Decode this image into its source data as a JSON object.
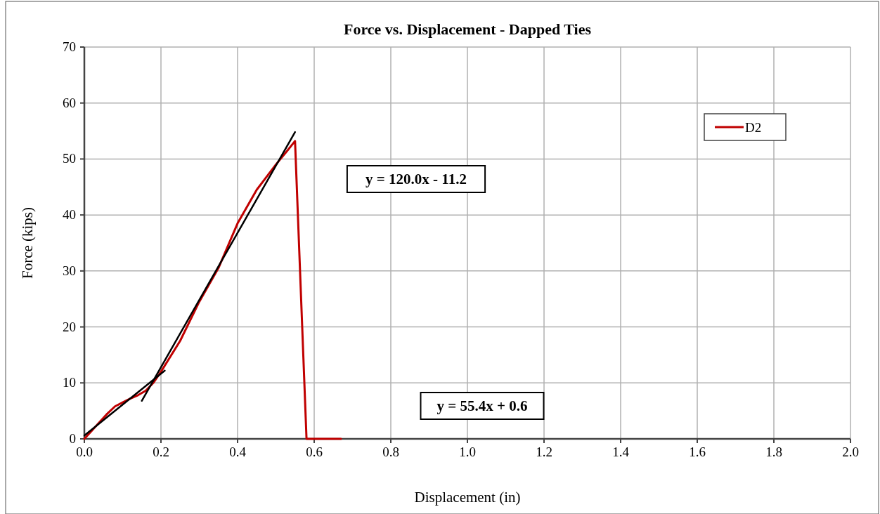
{
  "chart_data": {
    "type": "line",
    "title": "Force vs. Displacement - Dapped Ties",
    "xlabel": "Displacement (in)",
    "ylabel": "Force (kips)",
    "xlim": [
      0,
      2
    ],
    "xticks": [
      {
        "value": 0,
        "label": "0.0"
      },
      {
        "value": 0.2,
        "label": "0.2"
      },
      {
        "value": 0.4,
        "label": "0.4"
      },
      {
        "value": 0.6,
        "label": "0.6"
      },
      {
        "value": 0.8,
        "label": "0.8"
      },
      {
        "value": 1,
        "label": "1.0"
      },
      {
        "value": 1.2,
        "label": "1.2"
      },
      {
        "value": 1.4,
        "label": "1.4"
      },
      {
        "value": 1.6,
        "label": "1.6"
      },
      {
        "value": 1.8,
        "label": "1.8"
      },
      {
        "value": 2,
        "label": "2.0"
      }
    ],
    "ylim": [
      0,
      70
    ],
    "yticks": [
      0,
      10,
      20,
      30,
      40,
      50,
      60,
      70
    ],
    "grid": true,
    "legend": "top right",
    "marker": "none",
    "line_style": "solid",
    "series": [
      {
        "name": "D2",
        "color": "#c00000",
        "x": [
          0,
          0.02,
          0.04,
          0.06,
          0.08,
          0.1,
          0.12,
          0.14,
          0.16,
          0.18,
          0.2,
          0.25,
          0.3,
          0.35,
          0.4,
          0.45,
          0.5,
          0.53,
          0.55,
          0.58,
          0.67
        ],
        "values": [
          0,
          1.5,
          3,
          4.5,
          5.8,
          6.5,
          7.2,
          7.8,
          8.6,
          10,
          12,
          17.5,
          24.5,
          30.5,
          38.5,
          44.5,
          49,
          51.5,
          53.2,
          0,
          0
        ]
      },
      {
        "type": "line",
        "color": "#000000",
        "x": [
          0,
          0.21
        ],
        "values": [
          0.6,
          12.2
        ]
      },
      {
        "type": "line",
        "color": "#000000",
        "x": [
          0.15,
          0.55
        ],
        "values": [
          6.8,
          54.8
        ]
      }
    ],
    "annotations": [
      "y = 120.0x - 11.2",
      "y = 55.4x + 0.6"
    ]
  }
}
